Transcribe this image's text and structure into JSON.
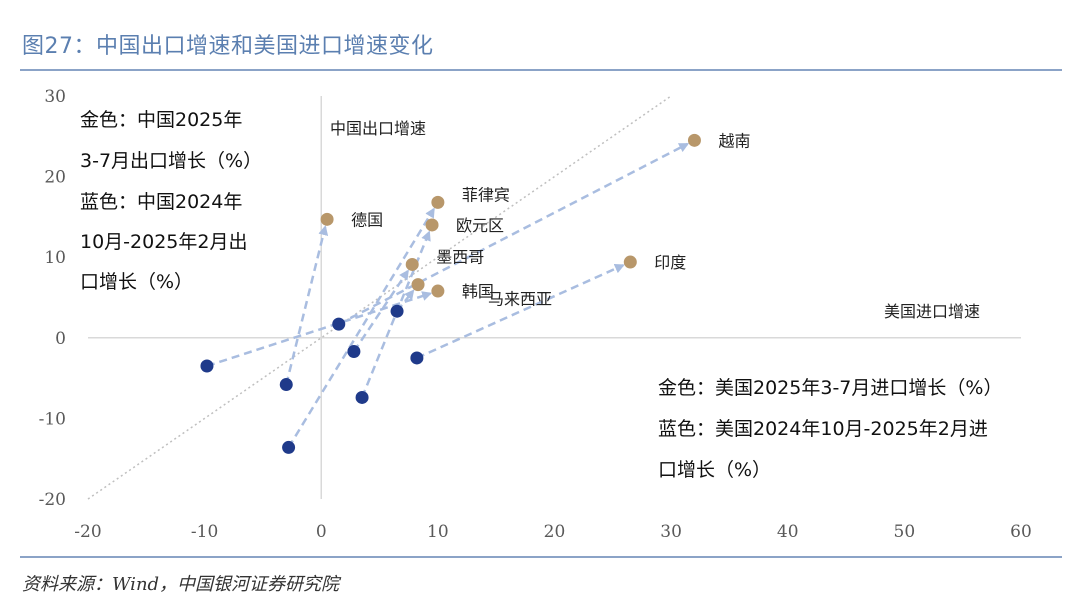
{
  "title": "图27：中国出口增速和美国进口增速变化",
  "source": "资料来源：Wind，中国银河证券研究院",
  "colors": {
    "gold": "#b8976a",
    "blue": "#1f3a8a",
    "arrow": "#a9bde0",
    "title": "#5b7fb0"
  },
  "chart_data": {
    "type": "scatter",
    "x_axis_title": "美国进口增速",
    "y_axis_title": "中国出口增速",
    "xlim": [
      -20,
      60
    ],
    "ylim": [
      -20,
      30
    ],
    "xticks": [
      -20,
      -10,
      0,
      10,
      20,
      30,
      40,
      50,
      60
    ],
    "yticks": [
      -20,
      -10,
      0,
      10,
      20,
      30
    ],
    "note_left": [
      "金色：中国2025年",
      "3-7月出口增长（%）",
      "蓝色：中国2024年",
      "10月-2025年2月出",
      "口增长（%）"
    ],
    "note_right": [
      "金色：美国2025年3-7月进口增长（%）",
      "蓝色：美国2024年10月-2025年2月进",
      "口增长（%）"
    ],
    "series": [
      {
        "name": "越南",
        "from": [
          1.5,
          1.7
        ],
        "to": [
          32,
          24.5
        ]
      },
      {
        "name": "菲律宾",
        "from": [
          -2.8,
          -13.6
        ],
        "to": [
          10,
          16.8
        ]
      },
      {
        "name": "德国",
        "from": [
          -3,
          -5.8
        ],
        "to": [
          0.5,
          14.7
        ]
      },
      {
        "name": "欧元区",
        "from": [
          3.5,
          -7.4
        ],
        "to": [
          9.5,
          14.0
        ]
      },
      {
        "name": "印度",
        "from": [
          8.2,
          -2.5
        ],
        "to": [
          26.5,
          9.4
        ]
      },
      {
        "name": "墨西哥",
        "from": [
          2.8,
          -1.7
        ],
        "to": [
          7.8,
          9.1
        ]
      },
      {
        "name": "马来西亚",
        "from": [
          6.5,
          3.3
        ],
        "to": [
          8.3,
          6.6
        ]
      },
      {
        "name": "韩国",
        "from": [
          -9.8,
          -3.5
        ],
        "to": [
          10,
          5.8
        ]
      }
    ],
    "reference_line": {
      "from": [
        -20,
        -20
      ],
      "to": [
        30,
        30
      ]
    }
  }
}
